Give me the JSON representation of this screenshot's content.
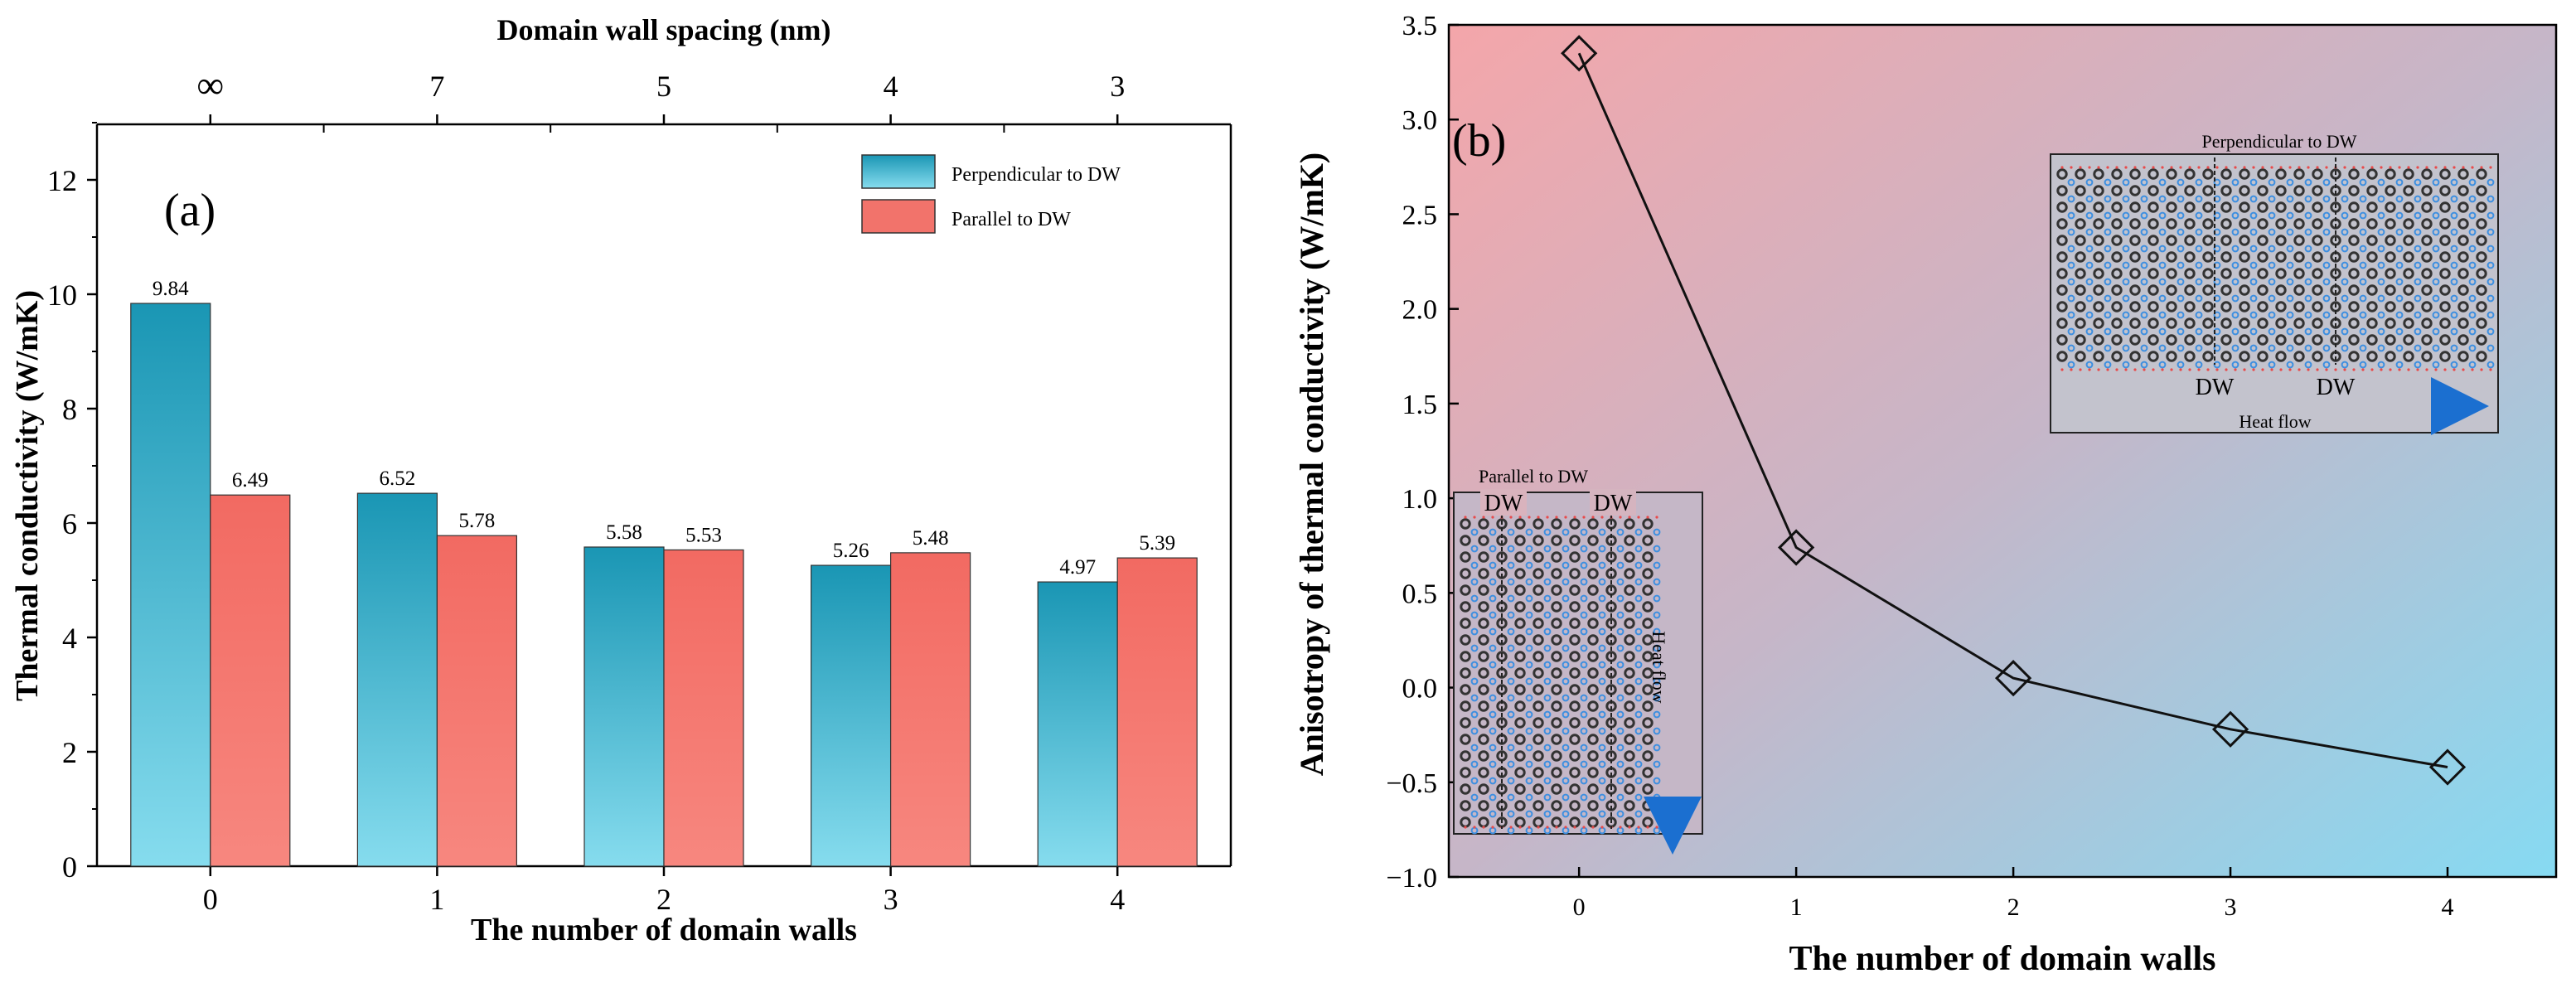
{
  "chart_data": [
    {
      "id": "a",
      "type": "bar",
      "panel_label": "(a)",
      "xlabel": "The number of domain walls",
      "ylabel": "Thermal conductivity (W/mK)",
      "top_axis_label": "Domain wall spacing (nm)",
      "categories": [
        "0",
        "1",
        "2",
        "3",
        "4"
      ],
      "top_ticks": [
        "∞",
        "7",
        "5",
        "4",
        "3"
      ],
      "ylim": [
        0,
        13
      ],
      "yticks": [
        "0",
        "2",
        "4",
        "6",
        "8",
        "10",
        "12"
      ],
      "series": [
        {
          "name": "Perpendicular to DW",
          "values": [
            9.84,
            6.52,
            5.58,
            5.26,
            4.97
          ],
          "labels": [
            "9.84",
            "6.52",
            "5.58",
            "5.26",
            "4.97"
          ]
        },
        {
          "name": "Parallel to DW",
          "values": [
            6.49,
            5.78,
            5.53,
            5.48,
            5.39
          ],
          "labels": [
            "6.49",
            "5.78",
            "5.53",
            "5.48",
            "5.39"
          ]
        }
      ],
      "legend_position": "top-right"
    },
    {
      "id": "b",
      "type": "line",
      "panel_label": "(b)",
      "xlabel": "The number of domain walls",
      "ylabel": "Anisotropy of thermal conductivity (W/mK)",
      "x": [
        0,
        1,
        2,
        3,
        4
      ],
      "xticks": [
        "0",
        "1",
        "2",
        "3",
        "4"
      ],
      "values": [
        3.35,
        0.74,
        0.05,
        -0.22,
        -0.42
      ],
      "xlim": [
        -0.6,
        4.5
      ],
      "ylim": [
        -1.0,
        3.5
      ],
      "yticks": [
        "−1.0",
        "−0.5",
        "0.0",
        "0.5",
        "1.0",
        "1.5",
        "2.0",
        "2.5",
        "3.0",
        "3.5"
      ],
      "marker": "diamond",
      "insets": [
        {
          "title": "Perpendicular to DW",
          "dw_labels": [
            "DW",
            "DW"
          ],
          "flow_label": "Heat flow",
          "flow_direction": "horizontal"
        },
        {
          "title": "Parallel to DW",
          "dw_labels": [
            "DW",
            "DW"
          ],
          "flow_label": "Heat flow",
          "flow_direction": "vertical"
        }
      ]
    }
  ],
  "colors": {
    "perp_top": "#1a96b4",
    "perp_bottom": "#86dcee",
    "para": "#f2736b",
    "para_bottom": "#f7877f",
    "bg_left": "#f4a6aa",
    "bg_right": "#86daf2",
    "flow_red": "#e81e2a",
    "flow_blue": "#1b6fd0",
    "atom_dark": "#333333",
    "atom_blue": "#3d8fe0",
    "atom_red": "#e84a4a"
  }
}
